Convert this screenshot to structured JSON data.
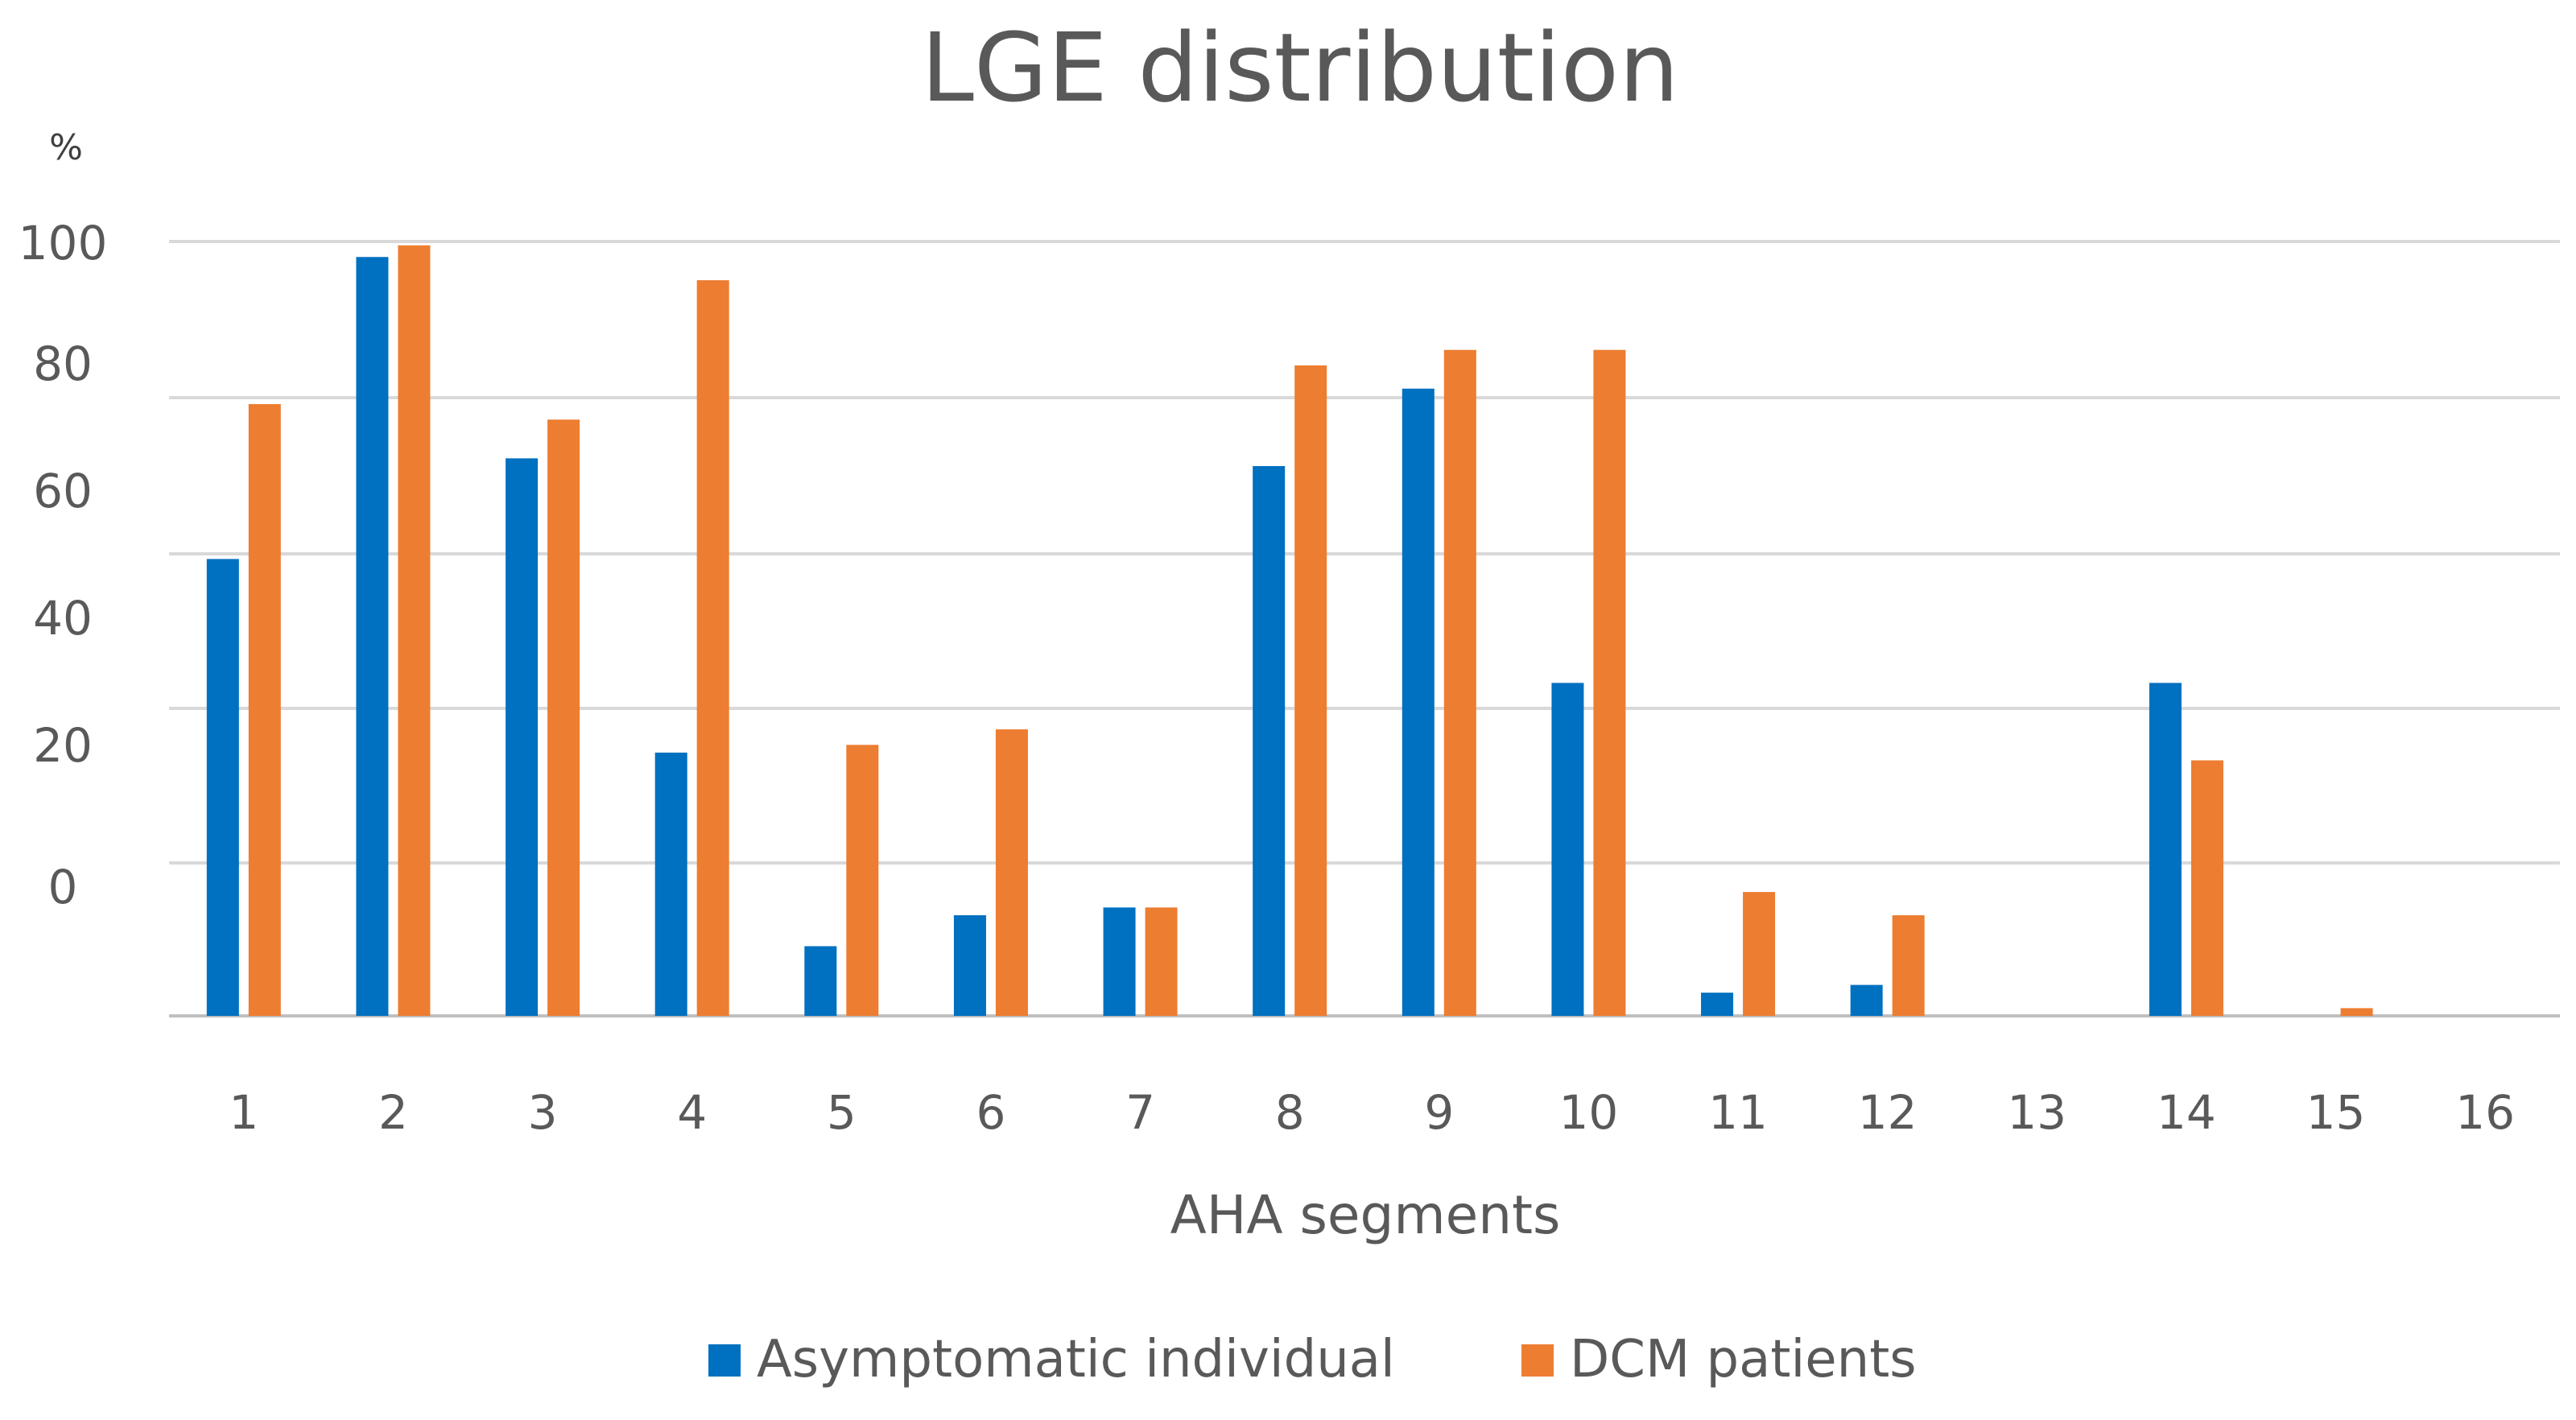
{
  "chart_data": {
    "type": "bar",
    "title": "LGE distribution",
    "xlabel": "AHA segments",
    "ylabel": "%",
    "categories": [
      "1",
      "2",
      "3",
      "4",
      "5",
      "6",
      "7",
      "8",
      "9",
      "10",
      "11",
      "12",
      "13",
      "14",
      "15",
      "16"
    ],
    "y_tick_labels": [
      "0",
      "20",
      "40",
      "60",
      "80",
      "100"
    ],
    "series": [
      {
        "name": "Asymptomatic individual",
        "color": "#0070C0",
        "values": [
          59,
          98,
          72,
          34,
          9,
          13,
          14,
          71,
          81,
          43,
          3,
          4,
          0,
          43,
          0,
          0
        ]
      },
      {
        "name": "DCM patients",
        "color": "#ED7D31",
        "values": [
          79,
          99.5,
          77,
          95,
          35,
          37,
          14,
          84,
          86,
          86,
          16,
          13,
          0,
          33,
          1,
          0
        ]
      }
    ],
    "grid": true,
    "legend_position": "bottom"
  }
}
